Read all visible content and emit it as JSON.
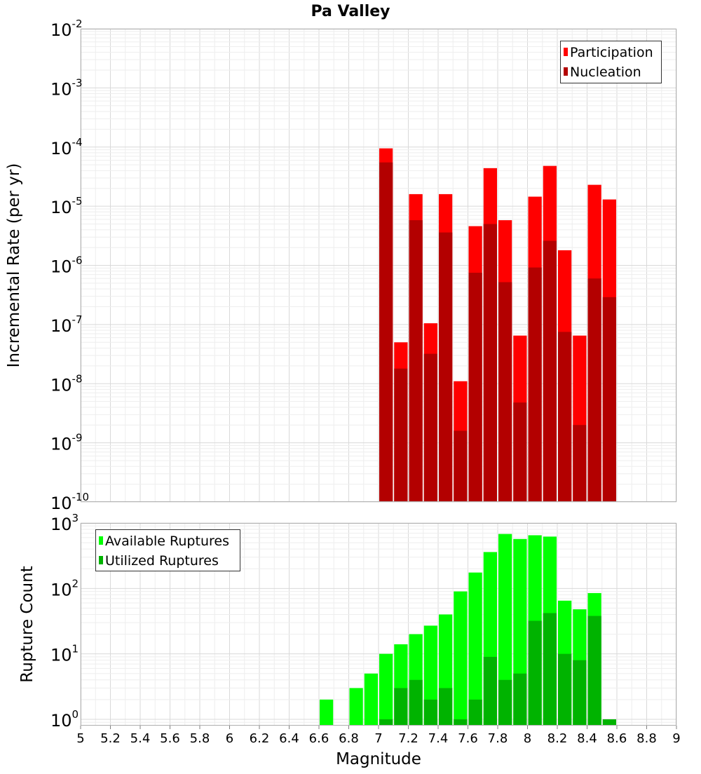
{
  "title": "Pa Valley",
  "chart_data": [
    {
      "type": "bar",
      "title": "Pa Valley",
      "xlabel": "Magnitude",
      "ylabel": "Incremental Rate (per yr)",
      "y_scale": "log",
      "ylim": [
        1e-10,
        0.01
      ],
      "xlim": [
        5,
        9
      ],
      "bar_width": 0.1,
      "legend_position": "top-right",
      "grid": true,
      "x": [
        7.0,
        7.1,
        7.2,
        7.3,
        7.4,
        7.5,
        7.6,
        7.7,
        7.8,
        7.9,
        8.0,
        8.1,
        8.2,
        8.3,
        8.4,
        8.5
      ],
      "series": [
        {
          "name": "Participation",
          "color": "#ff0000",
          "values": [
            9.5e-05,
            5e-08,
            1.6e-05,
            1.05e-07,
            1.6e-05,
            1.1e-08,
            4.6e-06,
            4.4e-05,
            5.8e-06,
            6.5e-08,
            1.45e-05,
            4.8e-05,
            1.8e-06,
            6.5e-08,
            2.3e-05,
            1.3e-05
          ]
        },
        {
          "name": "Nucleation",
          "color": "#b30000",
          "values": [
            5.5e-05,
            1.8e-08,
            5.8e-06,
            3.2e-08,
            3.6e-06,
            1.6e-09,
            7.5e-07,
            5e-06,
            5.2e-07,
            4.8e-09,
            9.2e-07,
            2.6e-06,
            7.5e-08,
            2e-09,
            6e-07,
            2.9e-07
          ]
        }
      ]
    },
    {
      "type": "bar",
      "xlabel": "Magnitude",
      "ylabel": "Rupture Count",
      "y_scale": "log",
      "ylim": [
        0.8,
        1000
      ],
      "xlim": [
        5,
        9
      ],
      "bar_width": 0.1,
      "legend_position": "top-left",
      "grid": true,
      "x": [
        6.6,
        6.7,
        6.8,
        6.9,
        7.0,
        7.1,
        7.2,
        7.3,
        7.4,
        7.5,
        7.6,
        7.7,
        7.8,
        7.9,
        8.0,
        8.1,
        8.2,
        8.3,
        8.4,
        8.5
      ],
      "series": [
        {
          "name": "Available Ruptures",
          "color": "#00ff00",
          "values": [
            2,
            0,
            3,
            5,
            10,
            14,
            20,
            27,
            40,
            90,
            175,
            360,
            680,
            570,
            650,
            620,
            65,
            48,
            85,
            0
          ]
        },
        {
          "name": "Utilized Ruptures",
          "color": "#00b300",
          "values": [
            0,
            0,
            0,
            0,
            1,
            3,
            4,
            2,
            3,
            1,
            2,
            9,
            4,
            5,
            32,
            42,
            10,
            8,
            38,
            1
          ]
        }
      ],
      "xticks": [
        5,
        5.2,
        5.4,
        5.6,
        5.8,
        6,
        6.2,
        6.4,
        6.6,
        6.8,
        7,
        7.2,
        7.4,
        7.6,
        7.8,
        8,
        8.2,
        8.4,
        8.6,
        8.8,
        9
      ],
      "xtick_labels": [
        "5",
        "5.2",
        "5.4",
        "5.6",
        "5.8",
        "6",
        "6.2",
        "6.4",
        "6.6",
        "6.8",
        "7",
        "7.2",
        "7.4",
        "7.6",
        "7.8",
        "8",
        "8.2",
        "8.4",
        "8.6",
        "8.8",
        "9"
      ]
    }
  ]
}
